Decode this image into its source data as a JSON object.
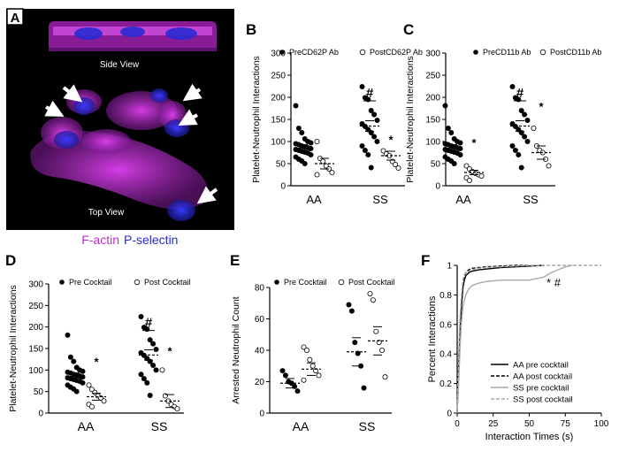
{
  "micro": {
    "panel_label": "A",
    "side_label": "Side View",
    "top_label": "Top View",
    "legend_factin": "F-actin",
    "legend_pselectin": "P-selectin",
    "colors": {
      "factin": "#c030c8",
      "pselectin": "#2a2ad0",
      "background": "#000000"
    }
  },
  "chart_data": [
    {
      "panel": "B",
      "type": "scatter",
      "ylabel": "Platelet-Neutrophil Interactions",
      "categories": [
        "AA",
        "SS"
      ],
      "ylim": [
        0,
        300
      ],
      "yticks": [
        0,
        50,
        100,
        150,
        200,
        250,
        300
      ],
      "legend": {
        "pre": "PreCD62P Ab",
        "post": "PostCD62P Ab"
      },
      "annotations": [
        {
          "text": "#",
          "category": "SS",
          "y": 200
        },
        {
          "text": "*",
          "category": "SS",
          "y": 95
        }
      ],
      "series": [
        {
          "name": "PreCD62P Ab",
          "marker": "filled",
          "AA": [
            181,
            130,
            120,
            106,
            100,
            97,
            95,
            93,
            90,
            88,
            86,
            84,
            82,
            80,
            78,
            76,
            74,
            70,
            65,
            60,
            56,
            50
          ],
          "SS": [
            224,
            199,
            195,
            170,
            161,
            148,
            140,
            134,
            127,
            120,
            111,
            100,
            90,
            80,
            70,
            41
          ],
          "mean": {
            "AA": 85,
            "SS": 135
          },
          "sem": {
            "AA": 8,
            "SS": 12
          }
        },
        {
          "name": "PostCD62P Ab",
          "marker": "open",
          "AA": [
            100,
            62,
            55,
            45,
            38,
            30,
            25
          ],
          "SS": [
            79,
            72,
            68,
            55,
            48,
            40
          ],
          "mean": {
            "AA": 50,
            "SS": 68
          },
          "sem": {
            "AA": 12,
            "SS": 10
          }
        }
      ]
    },
    {
      "panel": "C",
      "type": "scatter",
      "ylabel": "Platelet-Neutrophil Interactions",
      "categories": [
        "AA",
        "SS"
      ],
      "ylim": [
        0,
        300
      ],
      "yticks": [
        0,
        50,
        100,
        150,
        200,
        250,
        300
      ],
      "legend": {
        "pre": "PreCD11b Ab",
        "post": "PostCD11b Ab"
      },
      "annotations": [
        {
          "text": "#",
          "category": "SS",
          "y": 200
        },
        {
          "text": "*",
          "category": "AA",
          "y": 88
        },
        {
          "text": "*",
          "category": "SS",
          "y": 170
        }
      ],
      "series": [
        {
          "name": "PreCD11b Ab",
          "marker": "filled",
          "AA": [
            181,
            130,
            120,
            106,
            100,
            97,
            95,
            93,
            90,
            88,
            86,
            84,
            82,
            80,
            78,
            76,
            74,
            70,
            65,
            60,
            56,
            50
          ],
          "SS": [
            224,
            199,
            195,
            170,
            161,
            148,
            140,
            134,
            127,
            120,
            111,
            100,
            90,
            80,
            70,
            41
          ],
          "mean": {
            "AA": 85,
            "SS": 135
          },
          "sem": {
            "AA": 8,
            "SS": 12
          }
        },
        {
          "name": "PostCD11b Ab",
          "marker": "open",
          "AA": [
            45,
            38,
            32,
            28,
            25,
            22,
            18,
            12
          ],
          "SS": [
            130,
            90,
            80,
            75,
            60,
            45
          ],
          "mean": {
            "AA": 30,
            "SS": 75
          },
          "sem": {
            "AA": 5,
            "SS": 15
          }
        }
      ]
    },
    {
      "panel": "D",
      "type": "scatter",
      "ylabel": "Platelet-Neutrophil Interactions",
      "categories": [
        "AA",
        "SS"
      ],
      "ylim": [
        0,
        300
      ],
      "yticks": [
        0,
        50,
        100,
        150,
        200,
        250,
        300
      ],
      "legend": {
        "pre": "Pre Cocktail",
        "post": "Post Cocktail"
      },
      "annotations": [
        {
          "text": "#",
          "category": "SS",
          "y": 200
        },
        {
          "text": "*",
          "category": "AA",
          "y": 110
        },
        {
          "text": "*",
          "category": "SS",
          "y": 135
        }
      ],
      "series": [
        {
          "name": "Pre Cocktail",
          "marker": "filled",
          "AA": [
            181,
            130,
            120,
            106,
            100,
            97,
            95,
            93,
            90,
            88,
            86,
            84,
            82,
            80,
            78,
            76,
            74,
            70,
            65,
            60,
            56,
            50
          ],
          "SS": [
            224,
            199,
            195,
            170,
            161,
            148,
            140,
            134,
            127,
            120,
            111,
            100,
            90,
            80,
            70,
            41
          ],
          "mean": {
            "AA": 85,
            "SS": 135
          },
          "sem": {
            "AA": 8,
            "SS": 12
          }
        },
        {
          "name": "Post Cocktail",
          "marker": "open",
          "AA": [
            65,
            55,
            48,
            40,
            35,
            28,
            20,
            15
          ],
          "SS": [
            100,
            40,
            28,
            20,
            15,
            10
          ],
          "mean": {
            "AA": 38,
            "SS": 28
          },
          "sem": {
            "AA": 8,
            "SS": 15
          }
        }
      ]
    },
    {
      "panel": "E",
      "type": "scatter",
      "ylabel": "Arrested Neutrophil Count",
      "categories": [
        "AA",
        "SS"
      ],
      "ylim": [
        0,
        80
      ],
      "yticks": [
        0,
        20,
        40,
        60,
        80
      ],
      "legend": {
        "pre": "Pre Cocktail",
        "post": "Post Cocktail"
      },
      "annotations": [],
      "series": [
        {
          "name": "Pre Cocktail",
          "marker": "filled",
          "AA": [
            27,
            24,
            20,
            19,
            17,
            14
          ],
          "SS": [
            69,
            65,
            45,
            38,
            30,
            16
          ],
          "mean": {
            "AA": 19,
            "SS": 39
          },
          "sem": {
            "AA": 3,
            "SS": 9
          }
        },
        {
          "name": "Post Cocktail",
          "marker": "open",
          "AA": [
            42,
            40,
            34,
            30,
            27,
            24,
            21
          ],
          "SS": [
            76,
            72,
            52,
            45,
            40,
            23
          ],
          "mean": {
            "AA": 28,
            "SS": 46
          },
          "sem": {
            "AA": 4,
            "SS": 9
          }
        }
      ]
    },
    {
      "panel": "F",
      "type": "line",
      "xlabel": "Interaction Times (s)",
      "ylabel": "Percent Interactions",
      "xlim": [
        0,
        100
      ],
      "ylim": [
        0,
        1
      ],
      "xticks": [
        0,
        25,
        50,
        75,
        100
      ],
      "yticks": [
        0,
        0.2,
        0.4,
        0.6,
        0.8,
        1
      ],
      "annotations": [
        {
          "text": "* #",
          "x": 62,
          "y": 0.88
        }
      ],
      "series": [
        {
          "name": "AA pre cocktail",
          "color": "#000000",
          "dash": "solid",
          "x": [
            0,
            1,
            2,
            3,
            4,
            5,
            6,
            8,
            10,
            15,
            20,
            30,
            40,
            50,
            60
          ],
          "y": [
            0,
            0.3,
            0.55,
            0.72,
            0.85,
            0.9,
            0.93,
            0.95,
            0.96,
            0.97,
            0.975,
            0.985,
            0.99,
            0.995,
            1.0
          ]
        },
        {
          "name": "AA post cocktail",
          "color": "#000000",
          "dash": "dashed",
          "x": [
            0,
            1,
            2,
            3,
            4,
            5,
            6,
            8,
            10,
            15,
            20,
            30,
            40,
            50
          ],
          "y": [
            0,
            0.35,
            0.6,
            0.78,
            0.88,
            0.93,
            0.95,
            0.97,
            0.98,
            0.985,
            0.99,
            0.995,
            1.0,
            1.0
          ]
        },
        {
          "name": "SS pre cocktail",
          "color": "#aaaaaa",
          "dash": "solid",
          "x": [
            0,
            1,
            2,
            3,
            4,
            6,
            8,
            10,
            12,
            15,
            20,
            30,
            40,
            50,
            60,
            65,
            70,
            75,
            80
          ],
          "y": [
            0,
            0.2,
            0.45,
            0.62,
            0.72,
            0.8,
            0.84,
            0.86,
            0.87,
            0.88,
            0.89,
            0.9,
            0.9,
            0.9,
            0.92,
            0.95,
            0.97,
            0.99,
            1.0
          ]
        },
        {
          "name": "SS post cocktail",
          "color": "#aaaaaa",
          "dash": "dashed",
          "x": [
            0,
            1,
            2,
            3,
            4,
            5,
            8,
            10,
            15,
            20,
            30,
            40,
            50,
            60,
            100
          ],
          "y": [
            0,
            0.4,
            0.65,
            0.8,
            0.9,
            0.94,
            0.96,
            0.97,
            0.98,
            0.985,
            0.99,
            0.995,
            1.0,
            1.0,
            1.0
          ]
        }
      ]
    }
  ]
}
